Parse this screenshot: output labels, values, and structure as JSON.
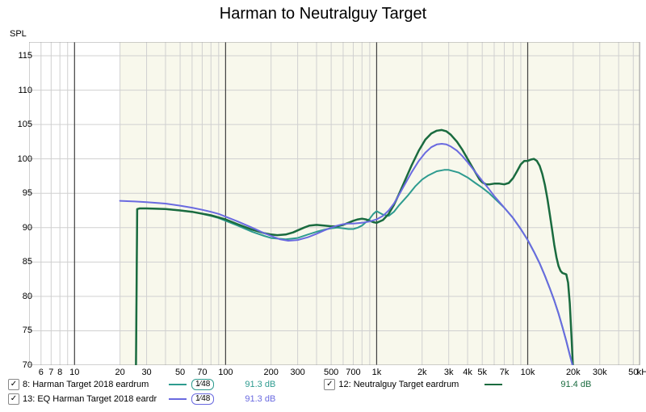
{
  "title": "Harman to Neutralguy Target",
  "y_axis_label": "SPL",
  "x_axis_suffix": "kHz",
  "chart": {
    "type": "line",
    "background_color": "#ffffff",
    "plot_bg_left": "#ffffff",
    "plot_bg_right": "#f8f8ec",
    "grid_color_major": "#a0a0a0",
    "grid_color_minor": "#d0d0d0",
    "grid_color_dark": "#404040",
    "ylim": [
      70,
      117
    ],
    "yticks": [
      70,
      75,
      80,
      85,
      90,
      95,
      100,
      105,
      110,
      115
    ],
    "xlim_log": [
      5,
      55000
    ],
    "x_major_ticks": [
      10,
      100,
      1000,
      10000
    ],
    "x_minor_ticks": [
      6,
      7,
      8,
      9,
      20,
      30,
      40,
      50,
      60,
      70,
      80,
      90,
      200,
      300,
      400,
      500,
      600,
      700,
      800,
      900,
      2000,
      3000,
      4000,
      5000,
      6000,
      7000,
      8000,
      9000,
      20000,
      30000,
      40000,
      50000
    ],
    "x_labels": [
      {
        "v": 6,
        "t": "6"
      },
      {
        "v": 7,
        "t": "7"
      },
      {
        "v": 8,
        "t": "8"
      },
      {
        "v": 10,
        "t": "10"
      },
      {
        "v": 20,
        "t": "20"
      },
      {
        "v": 30,
        "t": "30"
      },
      {
        "v": 50,
        "t": "50"
      },
      {
        "v": 70,
        "t": "70"
      },
      {
        "v": 100,
        "t": "100"
      },
      {
        "v": 200,
        "t": "200"
      },
      {
        "v": 300,
        "t": "300"
      },
      {
        "v": 500,
        "t": "500"
      },
      {
        "v": 700,
        "t": "700"
      },
      {
        "v": 1000,
        "t": "1k"
      },
      {
        "v": 2000,
        "t": "2k"
      },
      {
        "v": 3000,
        "t": "3k"
      },
      {
        "v": 4000,
        "t": "4k"
      },
      {
        "v": 5000,
        "t": "5k"
      },
      {
        "v": 7000,
        "t": "7k"
      },
      {
        "v": 10000,
        "t": "10k"
      },
      {
        "v": 20000,
        "t": "20k"
      },
      {
        "v": 30000,
        "t": "30k"
      },
      {
        "v": 50000,
        "t": "50"
      }
    ],
    "data_x_bg_split": 20
  },
  "series": [
    {
      "id": "harman",
      "label": "8: Harman Target 2018 eardrum",
      "color": "#2e9b8f",
      "line_width": 2,
      "smoothing": "1⁄48",
      "db": "91.3 dB",
      "checked": true,
      "points": [
        [
          25.5,
          70
        ],
        [
          26,
          92.7
        ],
        [
          27,
          92.8
        ],
        [
          30,
          92.8
        ],
        [
          40,
          92.7
        ],
        [
          50,
          92.5
        ],
        [
          60,
          92.3
        ],
        [
          70,
          92.0
        ],
        [
          80,
          91.7
        ],
        [
          90,
          91.4
        ],
        [
          100,
          91.0
        ],
        [
          120,
          90.3
        ],
        [
          150,
          89.4
        ],
        [
          180,
          88.8
        ],
        [
          200,
          88.5
        ],
        [
          250,
          88.3
        ],
        [
          300,
          88.5
        ],
        [
          350,
          89.0
        ],
        [
          400,
          89.4
        ],
        [
          450,
          89.7
        ],
        [
          500,
          89.9
        ],
        [
          550,
          90.0
        ],
        [
          600,
          89.9
        ],
        [
          650,
          89.8
        ],
        [
          700,
          89.8
        ],
        [
          750,
          90.0
        ],
        [
          800,
          90.3
        ],
        [
          850,
          90.8
        ],
        [
          900,
          91.3
        ],
        [
          950,
          92.0
        ],
        [
          1000,
          92.4
        ],
        [
          1100,
          91.9
        ],
        [
          1200,
          91.7
        ],
        [
          1300,
          92.3
        ],
        [
          1400,
          93.2
        ],
        [
          1600,
          94.6
        ],
        [
          1800,
          96.0
        ],
        [
          2000,
          97.0
        ],
        [
          2200,
          97.6
        ],
        [
          2500,
          98.2
        ],
        [
          2800,
          98.4
        ],
        [
          3000,
          98.4
        ],
        [
          3500,
          98.0
        ],
        [
          4000,
          97.3
        ],
        [
          4500,
          96.5
        ],
        [
          5000,
          95.8
        ],
        [
          5500,
          95.1
        ],
        [
          6000,
          94.3
        ],
        [
          7000,
          92.9
        ],
        [
          8000,
          91.4
        ],
        [
          9000,
          89.8
        ],
        [
          10000,
          88.2
        ],
        [
          11000,
          86.5
        ],
        [
          12000,
          84.8
        ],
        [
          13000,
          83.0
        ],
        [
          14000,
          81.2
        ],
        [
          15000,
          79.4
        ],
        [
          16000,
          77.5
        ],
        [
          17000,
          75.5
        ],
        [
          18000,
          73.5
        ],
        [
          19000,
          71.5
        ],
        [
          19800,
          70
        ]
      ]
    },
    {
      "id": "neutralguy",
      "label": "12: Neutralguy Target eardrum",
      "color": "#1a6b3f",
      "line_width": 2.5,
      "smoothing": null,
      "db": "91.4 dB",
      "checked": true,
      "points": [
        [
          25.5,
          70
        ],
        [
          26,
          92.7
        ],
        [
          27,
          92.8
        ],
        [
          30,
          92.8
        ],
        [
          40,
          92.7
        ],
        [
          50,
          92.5
        ],
        [
          60,
          92.3
        ],
        [
          80,
          91.8
        ],
        [
          100,
          91.2
        ],
        [
          120,
          90.5
        ],
        [
          150,
          89.7
        ],
        [
          180,
          89.2
        ],
        [
          200,
          89.0
        ],
        [
          220,
          88.9
        ],
        [
          250,
          89.0
        ],
        [
          280,
          89.3
        ],
        [
          300,
          89.6
        ],
        [
          330,
          90.0
        ],
        [
          360,
          90.3
        ],
        [
          400,
          90.4
        ],
        [
          450,
          90.3
        ],
        [
          500,
          90.2
        ],
        [
          550,
          90.2
        ],
        [
          600,
          90.4
        ],
        [
          650,
          90.7
        ],
        [
          700,
          91.0
        ],
        [
          750,
          91.2
        ],
        [
          800,
          91.3
        ],
        [
          850,
          91.2
        ],
        [
          900,
          91.0
        ],
        [
          950,
          90.8
        ],
        [
          1000,
          90.7
        ],
        [
          1100,
          91.1
        ],
        [
          1200,
          92.0
        ],
        [
          1300,
          93.3
        ],
        [
          1400,
          94.8
        ],
        [
          1500,
          96.3
        ],
        [
          1700,
          99.0
        ],
        [
          1900,
          101.2
        ],
        [
          2100,
          102.8
        ],
        [
          2300,
          103.7
        ],
        [
          2500,
          104.1
        ],
        [
          2700,
          104.2
        ],
        [
          2900,
          104.0
        ],
        [
          3100,
          103.5
        ],
        [
          3400,
          102.5
        ],
        [
          3700,
          101.3
        ],
        [
          4000,
          100.0
        ],
        [
          4300,
          98.8
        ],
        [
          4600,
          97.7
        ],
        [
          4800,
          97.0
        ],
        [
          5000,
          96.6
        ],
        [
          5300,
          96.3
        ],
        [
          5600,
          96.3
        ],
        [
          6000,
          96.4
        ],
        [
          6500,
          96.4
        ],
        [
          7000,
          96.3
        ],
        [
          7500,
          96.5
        ],
        [
          8000,
          97.2
        ],
        [
          8500,
          98.2
        ],
        [
          9000,
          99.2
        ],
        [
          9500,
          99.7
        ],
        [
          10000,
          99.7
        ],
        [
          10500,
          99.9
        ],
        [
          11000,
          100.0
        ],
        [
          11500,
          99.7
        ],
        [
          12000,
          99.0
        ],
        [
          12500,
          97.8
        ],
        [
          13000,
          96.2
        ],
        [
          13500,
          94.2
        ],
        [
          14000,
          92.0
        ],
        [
          14500,
          89.7
        ],
        [
          15000,
          87.5
        ],
        [
          15500,
          85.7
        ],
        [
          16000,
          84.4
        ],
        [
          16500,
          83.7
        ],
        [
          17000,
          83.4
        ],
        [
          17500,
          83.3
        ],
        [
          18000,
          83.2
        ],
        [
          18500,
          82.0
        ],
        [
          19000,
          79.0
        ],
        [
          19500,
          74.0
        ],
        [
          19900,
          70
        ]
      ]
    },
    {
      "id": "eq_harman",
      "label": "13: EQ Harman Target 2018 eardr",
      "color": "#6a6ae0",
      "line_width": 2,
      "smoothing": "1⁄48",
      "db": "91.3 dB",
      "checked": true,
      "points": [
        [
          20,
          93.9
        ],
        [
          25,
          93.8
        ],
        [
          30,
          93.7
        ],
        [
          40,
          93.5
        ],
        [
          50,
          93.2
        ],
        [
          60,
          92.9
        ],
        [
          70,
          92.6
        ],
        [
          80,
          92.3
        ],
        [
          90,
          92.0
        ],
        [
          100,
          91.6
        ],
        [
          120,
          90.9
        ],
        [
          150,
          90.0
        ],
        [
          180,
          89.2
        ],
        [
          200,
          88.8
        ],
        [
          230,
          88.3
        ],
        [
          260,
          88.1
        ],
        [
          300,
          88.2
        ],
        [
          350,
          88.6
        ],
        [
          400,
          89.1
        ],
        [
          450,
          89.6
        ],
        [
          500,
          90.0
        ],
        [
          550,
          90.3
        ],
        [
          600,
          90.5
        ],
        [
          650,
          90.6
        ],
        [
          700,
          90.6
        ],
        [
          800,
          90.7
        ],
        [
          900,
          90.9
        ],
        [
          1000,
          91.2
        ],
        [
          1100,
          91.7
        ],
        [
          1200,
          92.5
        ],
        [
          1300,
          93.5
        ],
        [
          1400,
          94.7
        ],
        [
          1500,
          95.9
        ],
        [
          1700,
          98.0
        ],
        [
          1900,
          99.7
        ],
        [
          2100,
          100.9
        ],
        [
          2300,
          101.7
        ],
        [
          2500,
          102.1
        ],
        [
          2700,
          102.2
        ],
        [
          2900,
          102.1
        ],
        [
          3100,
          101.8
        ],
        [
          3400,
          101.2
        ],
        [
          3700,
          100.4
        ],
        [
          4000,
          99.5
        ],
        [
          4500,
          98.1
        ],
        [
          5000,
          96.8
        ],
        [
          5500,
          95.7
        ],
        [
          6000,
          94.6
        ],
        [
          7000,
          92.9
        ],
        [
          8000,
          91.4
        ],
        [
          9000,
          89.8
        ],
        [
          10000,
          88.2
        ],
        [
          11000,
          86.5
        ],
        [
          12000,
          84.8
        ],
        [
          13000,
          83.0
        ],
        [
          14000,
          81.2
        ],
        [
          15000,
          79.4
        ],
        [
          16000,
          77.5
        ],
        [
          17000,
          75.5
        ],
        [
          18000,
          73.5
        ],
        [
          19000,
          71.5
        ],
        [
          19800,
          70
        ]
      ]
    }
  ],
  "legend_layout": [
    [
      "harman",
      "neutralguy"
    ],
    [
      "eq_harman"
    ]
  ]
}
